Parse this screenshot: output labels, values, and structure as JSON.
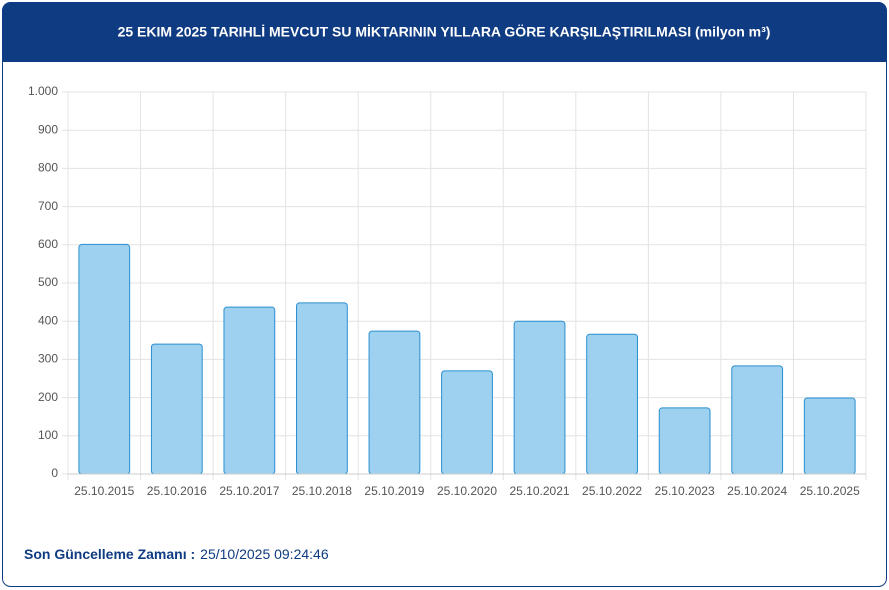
{
  "chart_data": {
    "type": "bar",
    "title": "25 EKIM 2025 TARIHLİ MEVCUT SU MİKTARININ YILLARA GÖRE KARŞILAŞTIRILMASI (milyon m³)",
    "categories": [
      "25.10.2015",
      "25.10.2016",
      "25.10.2017",
      "25.10.2018",
      "25.10.2019",
      "25.10.2020",
      "25.10.2021",
      "25.10.2022",
      "25.10.2023",
      "25.10.2024",
      "25.10.2025"
    ],
    "values": [
      601,
      340,
      437,
      448,
      374,
      270,
      400,
      366,
      173,
      283,
      199
    ],
    "color": "#9dd1ef",
    "edgecolor": "#2a8fd0",
    "ylim": [
      0,
      1000
    ],
    "yticks": [
      0,
      100,
      200,
      300,
      400,
      500,
      600,
      700,
      800,
      900,
      {
        "value": 1000,
        "label": "1.000"
      }
    ],
    "grid": true
  },
  "footer": {
    "label": "Son Güncelleme Zamanı :",
    "value": "25/10/2025 09:24:46"
  }
}
